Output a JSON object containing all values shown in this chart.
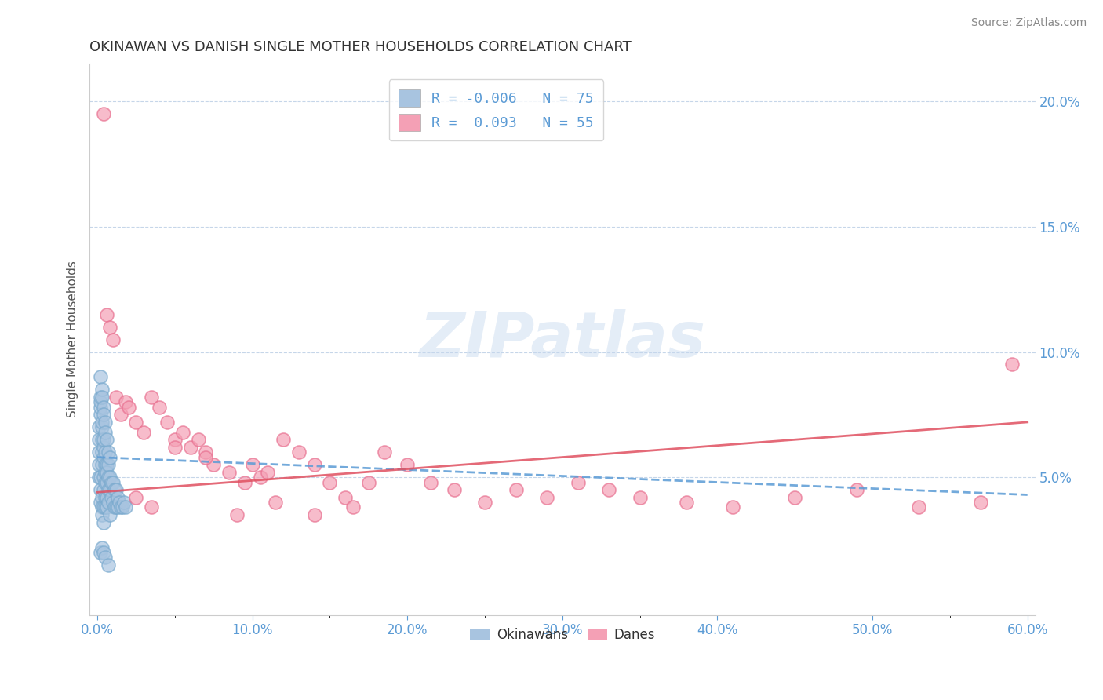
{
  "title": "OKINAWAN VS DANISH SINGLE MOTHER HOUSEHOLDS CORRELATION CHART",
  "source": "Source: ZipAtlas.com",
  "ylabel": "Single Mother Households",
  "xlim": [
    -0.005,
    0.605
  ],
  "ylim": [
    -0.005,
    0.215
  ],
  "xticks": [
    0.0,
    0.1,
    0.2,
    0.3,
    0.4,
    0.5,
    0.6
  ],
  "xticklabels": [
    "0.0%",
    "10.0%",
    "20.0%",
    "30.0%",
    "40.0%",
    "50.0%",
    "60.0%"
  ],
  "yticks": [
    0.05,
    0.1,
    0.15,
    0.2
  ],
  "yticklabels": [
    "5.0%",
    "10.0%",
    "15.0%",
    "20.0%"
  ],
  "okinawan_color": "#a8c4e0",
  "danish_color": "#f4a0b5",
  "okinawan_edge": "#7aaace",
  "danish_edge": "#e87090",
  "okinawan_R": -0.006,
  "okinawan_N": 75,
  "danish_R": 0.093,
  "danish_N": 55,
  "watermark": "ZIPatlas",
  "legend_label_1": "Okinawans",
  "legend_label_2": "Danes",
  "ok_trend_start_y": 0.058,
  "ok_trend_end_y": 0.043,
  "da_trend_start_y": 0.044,
  "da_trend_end_y": 0.072,
  "okinawan_x": [
    0.001,
    0.001,
    0.001,
    0.001,
    0.001,
    0.002,
    0.002,
    0.002,
    0.002,
    0.002,
    0.002,
    0.002,
    0.003,
    0.003,
    0.003,
    0.003,
    0.003,
    0.003,
    0.003,
    0.003,
    0.004,
    0.004,
    0.004,
    0.004,
    0.004,
    0.004,
    0.004,
    0.005,
    0.005,
    0.005,
    0.005,
    0.005,
    0.005,
    0.006,
    0.006,
    0.006,
    0.006,
    0.006,
    0.007,
    0.007,
    0.007,
    0.007,
    0.008,
    0.008,
    0.008,
    0.009,
    0.009,
    0.01,
    0.01,
    0.011,
    0.011,
    0.012,
    0.012,
    0.013,
    0.013,
    0.014,
    0.015,
    0.016,
    0.017,
    0.018,
    0.002,
    0.003,
    0.003,
    0.004,
    0.004,
    0.005,
    0.005,
    0.006,
    0.007,
    0.008,
    0.002,
    0.003,
    0.004,
    0.005,
    0.007
  ],
  "okinawan_y": [
    0.05,
    0.055,
    0.06,
    0.065,
    0.07,
    0.075,
    0.078,
    0.08,
    0.082,
    0.05,
    0.045,
    0.04,
    0.055,
    0.06,
    0.065,
    0.07,
    0.072,
    0.042,
    0.038,
    0.035,
    0.058,
    0.062,
    0.065,
    0.05,
    0.045,
    0.038,
    0.032,
    0.055,
    0.06,
    0.052,
    0.048,
    0.042,
    0.038,
    0.055,
    0.052,
    0.048,
    0.042,
    0.038,
    0.055,
    0.05,
    0.045,
    0.04,
    0.05,
    0.045,
    0.035,
    0.048,
    0.042,
    0.048,
    0.04,
    0.045,
    0.038,
    0.045,
    0.038,
    0.042,
    0.038,
    0.04,
    0.038,
    0.038,
    0.04,
    0.038,
    0.09,
    0.085,
    0.082,
    0.078,
    0.075,
    0.072,
    0.068,
    0.065,
    0.06,
    0.058,
    0.02,
    0.022,
    0.02,
    0.018,
    0.015
  ],
  "danish_x": [
    0.004,
    0.006,
    0.008,
    0.01,
    0.012,
    0.015,
    0.018,
    0.02,
    0.025,
    0.03,
    0.035,
    0.04,
    0.045,
    0.05,
    0.055,
    0.06,
    0.065,
    0.07,
    0.075,
    0.085,
    0.095,
    0.1,
    0.105,
    0.11,
    0.12,
    0.13,
    0.14,
    0.15,
    0.16,
    0.175,
    0.185,
    0.2,
    0.215,
    0.23,
    0.25,
    0.27,
    0.29,
    0.31,
    0.33,
    0.35,
    0.38,
    0.41,
    0.45,
    0.49,
    0.53,
    0.57,
    0.59,
    0.025,
    0.035,
    0.05,
    0.07,
    0.09,
    0.115,
    0.14,
    0.165
  ],
  "danish_y": [
    0.195,
    0.115,
    0.11,
    0.105,
    0.082,
    0.075,
    0.08,
    0.078,
    0.072,
    0.068,
    0.082,
    0.078,
    0.072,
    0.065,
    0.068,
    0.062,
    0.065,
    0.06,
    0.055,
    0.052,
    0.048,
    0.055,
    0.05,
    0.052,
    0.065,
    0.06,
    0.055,
    0.048,
    0.042,
    0.048,
    0.06,
    0.055,
    0.048,
    0.045,
    0.04,
    0.045,
    0.042,
    0.048,
    0.045,
    0.042,
    0.04,
    0.038,
    0.042,
    0.045,
    0.038,
    0.04,
    0.095,
    0.042,
    0.038,
    0.062,
    0.058,
    0.035,
    0.04,
    0.035,
    0.038
  ]
}
